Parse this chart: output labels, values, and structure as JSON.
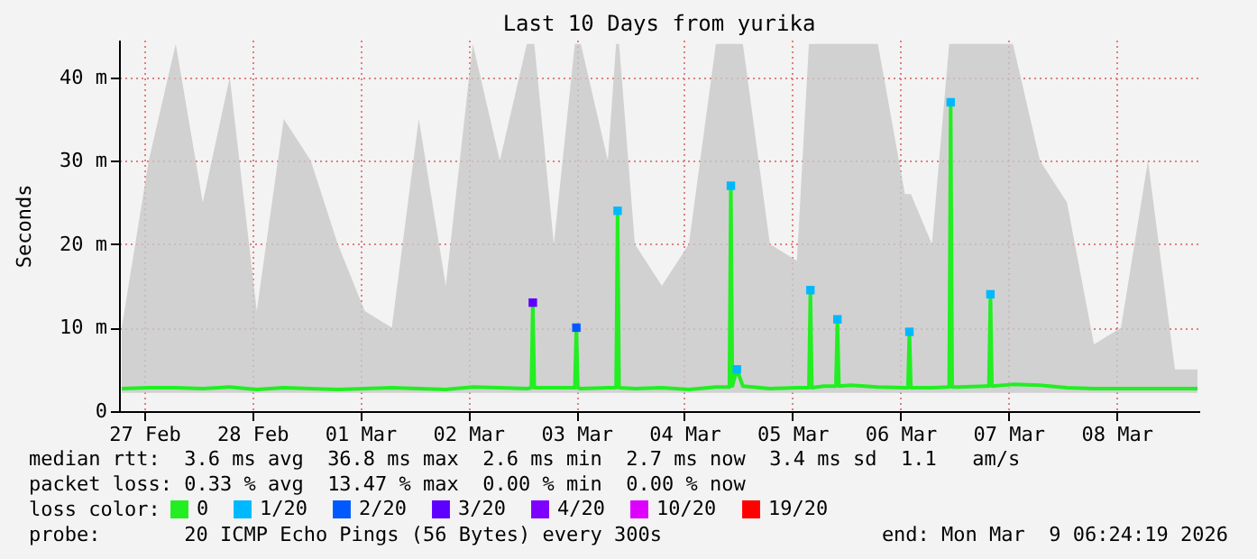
{
  "chart_data": {
    "type": "line",
    "title": "Last 10 Days from yurika",
    "ylabel": "Seconds",
    "legend_title": "loss color:",
    "legend": "bottom",
    "grid": true,
    "line_style": "solid",
    "xlim": [
      "2026-02-27T06:24",
      "2026-03-09T06:24"
    ],
    "xticks": [
      {
        "value": "2026-02-27T12:00",
        "label": "27 Feb"
      },
      {
        "value": "2026-02-28T12:00",
        "label": "28 Feb"
      },
      {
        "value": "2026-03-01T12:00",
        "label": "01 Mar"
      },
      {
        "value": "2026-03-02T12:00",
        "label": "02 Mar"
      },
      {
        "value": "2026-03-03T12:00",
        "label": "03 Mar"
      },
      {
        "value": "2026-03-04T12:00",
        "label": "04 Mar"
      },
      {
        "value": "2026-03-05T12:00",
        "label": "05 Mar"
      },
      {
        "value": "2026-03-06T12:00",
        "label": "06 Mar"
      },
      {
        "value": "2026-03-07T12:00",
        "label": "07 Mar"
      },
      {
        "value": "2026-03-08T12:00",
        "label": "08 Mar"
      }
    ],
    "ylim": [
      0,
      44.5
    ],
    "yticks": [
      0,
      {
        "value": 10,
        "label": "10 m"
      },
      {
        "value": 20,
        "label": "20 m"
      },
      {
        "value": 30,
        "label": "30 m"
      },
      {
        "value": 40,
        "label": "40 m"
      }
    ],
    "annotations": [
      "median rtt:  3.6 ms avg  36.8 ms max  2.6 ms min  2.7 ms now  3.4 ms sd  1.1   am/s",
      "packet loss: 0.33 % avg  13.47 % max  0.00 % min  0.00 % now",
      "probe:       20 ICMP Echo Pings (56 Bytes) every 300s",
      "end: Mon Mar  9 06:24:19 2026"
    ],
    "series": [
      {
        "name": "0",
        "color": "#22ee22",
        "x": [
          "2026-02-27T07:00",
          "2026-02-27T13:00",
          "2026-02-27T19:00",
          "2026-02-28T01:00",
          "2026-02-28T07:00",
          "2026-02-28T13:00",
          "2026-02-28T19:00",
          "2026-03-01T01:00",
          "2026-03-01T07:00",
          "2026-03-01T13:00",
          "2026-03-01T19:00",
          "2026-03-02T01:00",
          "2026-03-02T07:00",
          "2026-03-02T13:00",
          "2026-03-02T19:00",
          "2026-03-03T01:00",
          "2026-03-03T02:00",
          "2026-03-03T02:20",
          "2026-03-03T02:40",
          "2026-03-03T07:00",
          "2026-03-03T11:40",
          "2026-03-03T12:00",
          "2026-03-03T12:20",
          "2026-03-03T13:00",
          "2026-03-03T19:00",
          "2026-03-03T20:50",
          "2026-03-03T21:10",
          "2026-03-03T21:30",
          "2026-03-04T01:00",
          "2026-03-04T07:00",
          "2026-03-04T13:00",
          "2026-03-04T19:00",
          "2026-03-04T22:00",
          "2026-03-04T22:20",
          "2026-03-04T22:40",
          "2026-03-04T23:40",
          "2026-03-05T01:00",
          "2026-03-05T07:00",
          "2026-03-05T13:00",
          "2026-03-05T15:40",
          "2026-03-05T16:00",
          "2026-03-05T16:20",
          "2026-03-05T19:00",
          "2026-03-05T21:40",
          "2026-03-05T22:00",
          "2026-03-05T22:20",
          "2026-03-06T01:00",
          "2026-03-06T07:00",
          "2026-03-06T13:00",
          "2026-03-06T13:40",
          "2026-03-06T14:00",
          "2026-03-06T14:20",
          "2026-03-06T19:00",
          "2026-03-06T22:50",
          "2026-03-06T23:10",
          "2026-03-06T23:30",
          "2026-03-07T01:00",
          "2026-03-07T07:00",
          "2026-03-07T07:40",
          "2026-03-07T08:00",
          "2026-03-07T08:20",
          "2026-03-07T13:00",
          "2026-03-07T19:00",
          "2026-03-08T01:00",
          "2026-03-08T07:00",
          "2026-03-08T13:00",
          "2026-03-08T19:00",
          "2026-03-09T01:00",
          "2026-03-09T06:00"
        ],
        "values": [
          2.7,
          2.8,
          2.8,
          2.7,
          2.9,
          2.6,
          2.8,
          2.7,
          2.6,
          2.7,
          2.8,
          2.7,
          2.6,
          2.9,
          2.8,
          2.7,
          2.8,
          13,
          2.8,
          2.8,
          2.8,
          10,
          2.8,
          2.7,
          2.8,
          2.8,
          24,
          2.8,
          2.7,
          2.8,
          2.6,
          2.9,
          2.9,
          27,
          3,
          5,
          3,
          2.7,
          2.8,
          2.8,
          14.5,
          2.8,
          3,
          3,
          11,
          3,
          3.1,
          2.9,
          2.8,
          2.8,
          9.5,
          2.8,
          2.8,
          2.9,
          37,
          2.9,
          2.9,
          3,
          3,
          14,
          3,
          3.2,
          3.1,
          2.8,
          2.7,
          2.7,
          2.7,
          2.7,
          2.7
        ],
        "lower": [
          2.2,
          2.2,
          2.2,
          2.2,
          2.2,
          2.2,
          2.2,
          2.2,
          2.2,
          2.2,
          2.2,
          2.2,
          2.2,
          2.2,
          2.2,
          2.2,
          2.2,
          2.2,
          2.2,
          2.2,
          2.2,
          2.2,
          2.2,
          2.2,
          2.2,
          2.2,
          2.2,
          2.2,
          2.2,
          2.2,
          2.2,
          2.2,
          2.2,
          2.2,
          2.2,
          2.2,
          2.2,
          2.2,
          2.2,
          2.2,
          2.2,
          2.2,
          2.2,
          2.2,
          2.2,
          2.2,
          2.2,
          2.2,
          2.2,
          2.2,
          2.2,
          2.2,
          2.2,
          2.2,
          2.2,
          2.2,
          2.2,
          2.2,
          2.2,
          2.2,
          2.2,
          2.2,
          2.2,
          2.2,
          2.2,
          2.2,
          2.2,
          2.2,
          2.2
        ],
        "upper": [
          10,
          30,
          44,
          25,
          40,
          12,
          35,
          30,
          20,
          12,
          10,
          35,
          15,
          44,
          30,
          44,
          44,
          44,
          44,
          20,
          44,
          44,
          44,
          44,
          30,
          44,
          44,
          44,
          20,
          15,
          20,
          44,
          44,
          44,
          44,
          44,
          44,
          20,
          18,
          44,
          44,
          44,
          44,
          44,
          44,
          44,
          44,
          44,
          26,
          26,
          26,
          26,
          20,
          44,
          44,
          44,
          44,
          44,
          44,
          44,
          44,
          44,
          30,
          25,
          8,
          10,
          30,
          5,
          5
        ]
      },
      {
        "name": "1/20",
        "color": "#00b8ff",
        "type": "scatter",
        "marker": "square",
        "x": [
          "2026-03-03T21:10",
          "2026-03-04T22:20",
          "2026-03-04T23:40",
          "2026-03-05T16:00",
          "2026-03-05T22:00",
          "2026-03-06T14:00",
          "2026-03-06T23:10",
          "2026-03-07T08:00"
        ],
        "values": [
          24,
          27,
          5,
          14.5,
          11,
          9.5,
          37,
          14
        ]
      },
      {
        "name": "2/20",
        "color": "#0059ff",
        "type": "scatter",
        "marker": "square",
        "x": [
          "2026-03-03T12:00"
        ],
        "values": [
          10
        ]
      },
      {
        "name": "3/20",
        "color": "#5e00ff",
        "type": "scatter",
        "marker": "square",
        "x": [
          "2026-03-03T02:20"
        ],
        "values": [
          13
        ]
      },
      {
        "name": "4/20",
        "color": "#7e00ff",
        "type": "scatter"
      },
      {
        "name": "10/20",
        "color": "#dd00ff",
        "type": "scatter"
      },
      {
        "name": "19/20",
        "color": "#ff0000",
        "type": "scatter"
      }
    ]
  }
}
